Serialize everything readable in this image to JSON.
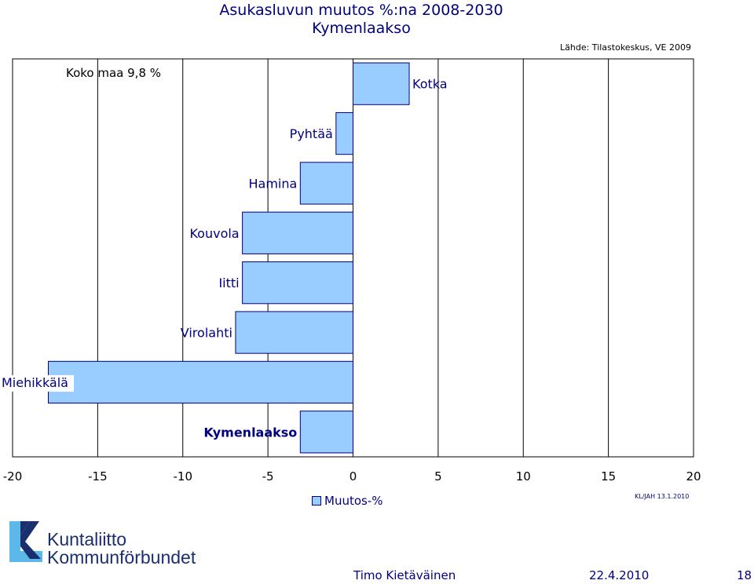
{
  "page": {
    "title_line1": "Asukasluvun muutos %:na 2008-2030",
    "title_line2": "Kymenlaakso",
    "source": "Lähde: Tilastokeskus, VE 2009",
    "legend_label": "Muutos-%",
    "stamp": "KL/JAH 13.1.2010",
    "logo_line1": "Kuntaliitto",
    "logo_line2": "Kommunförbundet",
    "footer_author": "Timo Kietäväinen",
    "footer_date": "22.4.2010",
    "footer_page": "18"
  },
  "colors": {
    "bar_fill": "#99ccff",
    "bar_stroke": "#000080",
    "text": "#000080",
    "logo_blue": "#1a2f6e",
    "logo_light": "#5bb8e8"
  },
  "chart_data": {
    "type": "bar",
    "orientation": "horizontal",
    "title": "Asukasluvun muutos %:na 2008-2030 Kymenlaakso",
    "xlabel": "",
    "ylabel": "",
    "xlim": [
      -20,
      20
    ],
    "xticks": [
      -20,
      -15,
      -10,
      -5,
      0,
      5,
      10,
      15,
      20
    ],
    "grid": "vertical",
    "legend": "bottom",
    "categories": [
      "Kotka",
      "Pyhtää",
      "Hamina",
      "Kouvola",
      "Iitti",
      "Virolahti",
      "Miehikkälä",
      "Kymenlaakso"
    ],
    "series": [
      {
        "name": "Muutos-%",
        "values": [
          3.3,
          -1.0,
          -3.1,
          -6.5,
          -6.5,
          -6.9,
          -17.9,
          -3.1
        ]
      }
    ],
    "reference": {
      "label": "Koko maa 9,8 %",
      "value": 9.8
    }
  }
}
